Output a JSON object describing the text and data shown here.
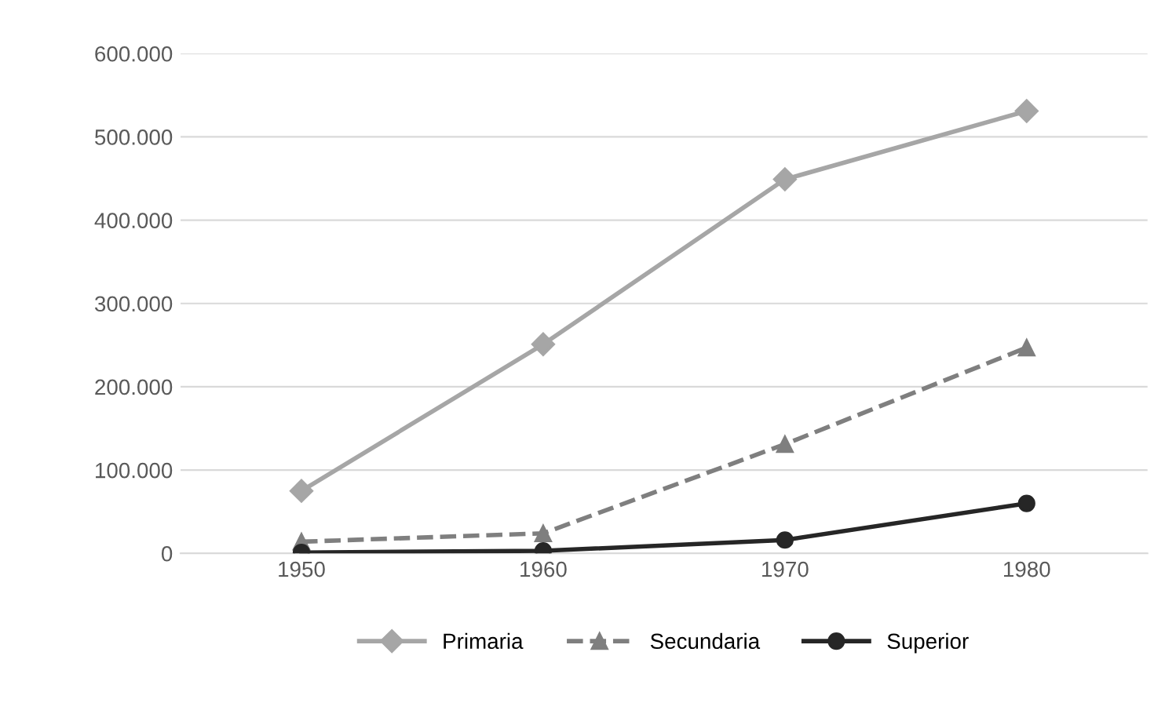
{
  "chart_data": {
    "type": "line",
    "categories": [
      "1950",
      "1960",
      "1970",
      "1980"
    ],
    "series": [
      {
        "name": "Primaria",
        "color": "#a6a6a6",
        "marker": "diamond",
        "line_style": "solid",
        "values": [
          75000,
          251000,
          449000,
          531000
        ]
      },
      {
        "name": "Secundaria",
        "color": "#7f7f7f",
        "marker": "triangle",
        "line_style": "dashed",
        "values": [
          14000,
          24000,
          131000,
          247000
        ]
      },
      {
        "name": "Superior",
        "color": "#262626",
        "marker": "circle",
        "line_style": "solid",
        "values": [
          1000,
          3000,
          16000,
          60000
        ]
      }
    ],
    "ylim": [
      0,
      600000
    ],
    "yticks": [
      0,
      {
        "value": 100000,
        "label": "100.000"
      },
      {
        "value": 200000,
        "label": "200.000"
      },
      {
        "value": 300000,
        "label": "300.000"
      },
      {
        "value": 400000,
        "label": "400.000"
      },
      {
        "value": 500000,
        "label": "500.000"
      },
      {
        "value": 600000,
        "label": "600.000"
      }
    ],
    "grid": "y",
    "legend": "bottom"
  }
}
